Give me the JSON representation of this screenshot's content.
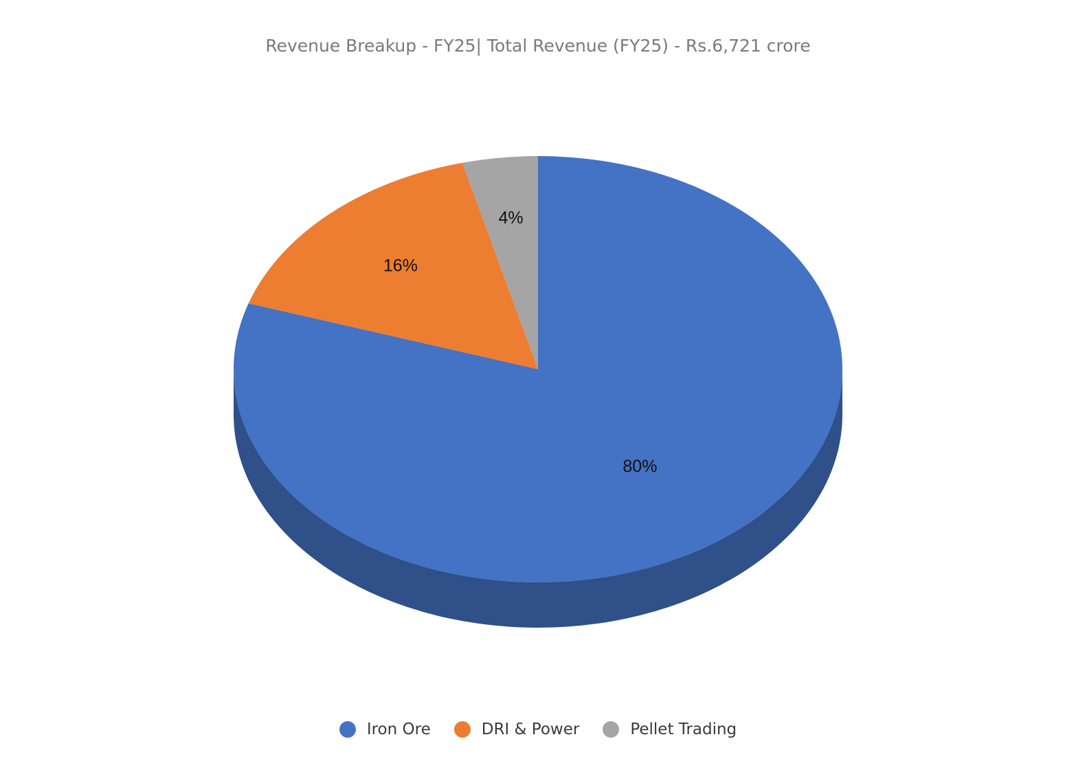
{
  "chart_data": {
    "type": "pie",
    "title": "Revenue Breakup - FY25| Total Revenue (FY25) - Rs.6,721 crore",
    "categories": [
      "Iron Ore",
      "DRI & Power",
      "Pellet Trading"
    ],
    "values": [
      80,
      16,
      4
    ],
    "data_labels": [
      "80%",
      "16%",
      "4%"
    ],
    "colors": [
      "#4472c4",
      "#ed7d31",
      "#a5a5a5"
    ],
    "side_color": "#2f5088",
    "legend_position": "bottom"
  }
}
